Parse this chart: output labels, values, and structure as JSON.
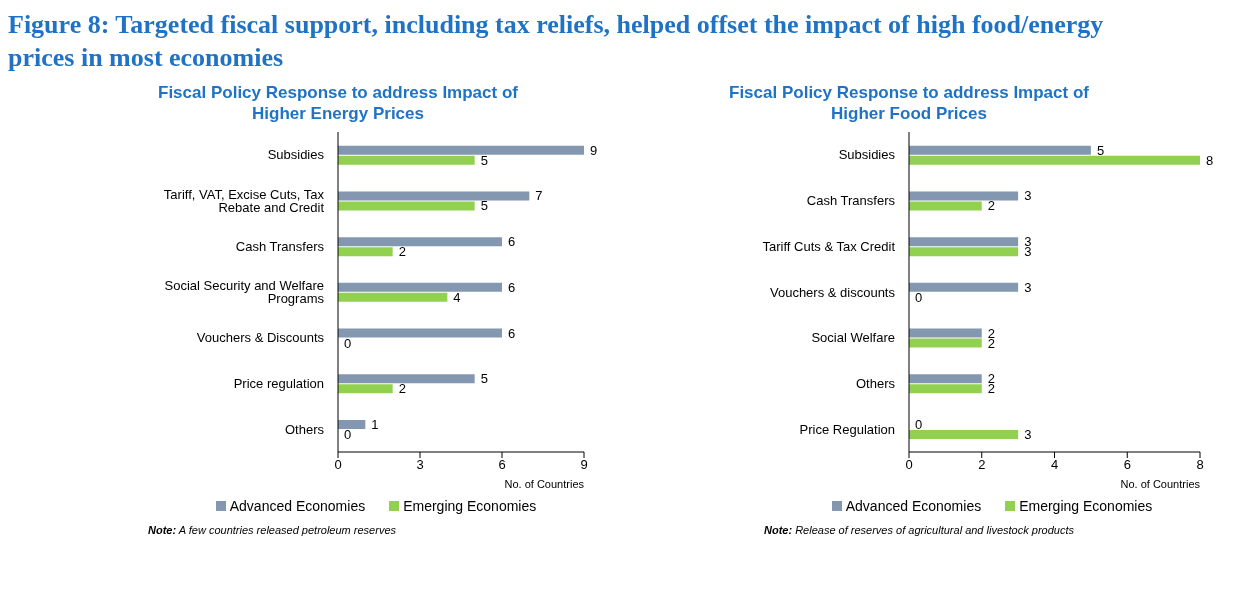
{
  "chart_data": [
    {
      "type": "bar",
      "orientation": "horizontal",
      "title": "Fiscal Policy Response to address Impact of Higher Energy Prices",
      "xlabel": "No. of Countries",
      "categories": [
        "Subsidies",
        "Tariff, VAT, Excise Cuts, Tax Rebate and Credit",
        "Cash Transfers",
        "Social Security and Welfare Programs",
        "Vouchers & Discounts",
        "Price regulation",
        "Others"
      ],
      "series": [
        {
          "name": "Advanced Economies",
          "color": "#8497b0",
          "values": [
            9,
            7,
            6,
            6,
            6,
            5,
            1
          ]
        },
        {
          "name": "Emerging Economies",
          "color": "#92d050",
          "values": [
            5,
            5,
            2,
            4,
            0,
            2,
            0
          ]
        }
      ],
      "xlim": [
        0,
        9
      ],
      "xticks": [
        0,
        3,
        6,
        9
      ],
      "data_labels": true,
      "legend": "bottom",
      "grid": false,
      "annotations": [
        "Figure 8: Targeted fiscal support, including tax reliefs, helped offset the impact of high food/energy prices in most economies",
        "Note: A few countries released petroleum reserves"
      ]
    },
    {
      "type": "bar",
      "orientation": "horizontal",
      "title": "Fiscal Policy Response to address Impact of Higher Food Prices",
      "xlabel": "No. of Countries",
      "categories": [
        "Subsidies",
        "Cash Transfers",
        "Tariff Cuts & Tax Credit",
        "Vouchers & discounts",
        "Social Welfare",
        "Others",
        "Price Regulation"
      ],
      "series": [
        {
          "name": "Advanced Economies",
          "color": "#8497b0",
          "values": [
            5,
            3,
            3,
            3,
            2,
            2,
            0
          ]
        },
        {
          "name": "Emerging Economies",
          "color": "#92d050",
          "values": [
            8,
            2,
            3,
            0,
            2,
            2,
            3
          ]
        }
      ],
      "xlim": [
        0,
        8
      ],
      "xticks": [
        0,
        2,
        4,
        6,
        8
      ],
      "data_labels": true,
      "legend": "bottom",
      "grid": false,
      "annotations": [
        "Note: Release of reserves of agricultural and livestock products"
      ]
    }
  ]
}
